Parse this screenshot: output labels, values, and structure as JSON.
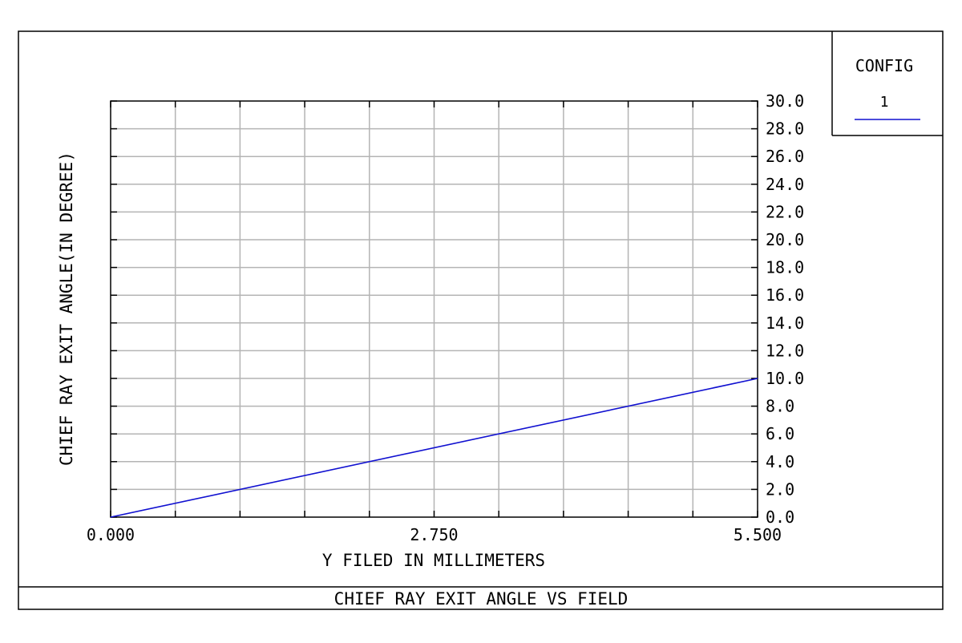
{
  "chart_data": {
    "type": "line",
    "title": "CHIEF RAY EXIT ANGLE VS FIELD",
    "xlabel": "Y FILED IN MILLIMETERS",
    "ylabel": "CHIEF RAY EXIT ANGLE(IN DEGREE)",
    "xlim": [
      0,
      5.5
    ],
    "ylim": [
      0,
      30
    ],
    "x_tick_labels": [
      "0.000",
      "2.750",
      "5.500"
    ],
    "x_tick_values": [
      0,
      2.75,
      5.5
    ],
    "y_tick_labels": [
      "0.0",
      "2.0",
      "4.0",
      "6.0",
      "8.0",
      "10.0",
      "12.0",
      "14.0",
      "16.0",
      "18.0",
      "20.0",
      "22.0",
      "24.0",
      "26.0",
      "28.0",
      "30.0"
    ],
    "y_tick_values": [
      0,
      2,
      4,
      6,
      8,
      10,
      12,
      14,
      16,
      18,
      20,
      22,
      24,
      26,
      28,
      30
    ],
    "x_grid_divisions": 10,
    "grid": true,
    "legend_position": "top-right",
    "series": [
      {
        "name": "1",
        "x": [
          0,
          5.5
        ],
        "y": [
          0,
          10
        ],
        "color": "#1010d0"
      }
    ]
  },
  "legend": {
    "title": "CONFIG",
    "entry_label": "1"
  },
  "colors": {
    "grid": "#b4b4b4",
    "series": "#1010d0",
    "frame": "#000000"
  }
}
